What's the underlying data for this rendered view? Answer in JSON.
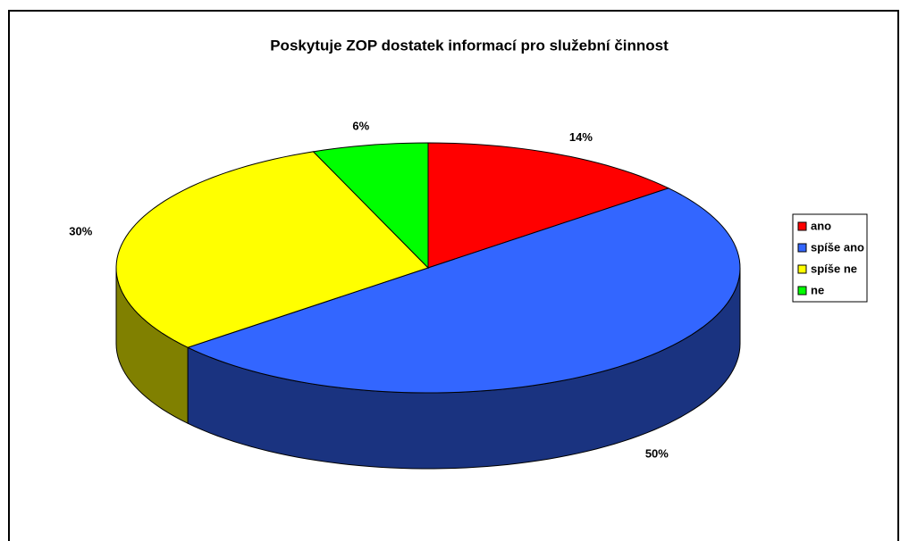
{
  "chart_data": {
    "type": "pie",
    "title": "Poskytuje ZOP dostatek informací pro služební činnost",
    "categories": [
      "ano",
      "spíše ano",
      "spíše ne",
      "ne"
    ],
    "values": [
      14,
      50,
      30,
      6
    ],
    "value_labels": [
      "14%",
      "50%",
      "30%",
      "6%"
    ],
    "colors": [
      "#ff0000",
      "#3366ff",
      "#ffff00",
      "#00ff00"
    ],
    "side_colors": [
      "#800000",
      "#1a3380",
      "#808000",
      "#008000"
    ],
    "legend": "right"
  }
}
